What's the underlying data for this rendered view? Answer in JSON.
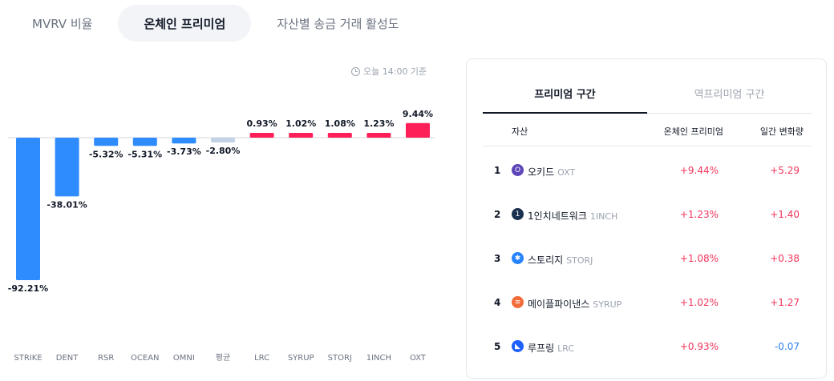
{
  "tabs": [
    {
      "label": "MVRV 비율",
      "active": false
    },
    {
      "label": "온체인 프리미엄",
      "active": true
    },
    {
      "label": "자산별 송금 거래 활성도",
      "active": false
    }
  ],
  "timestamp": "오늘 14:00 기준",
  "chart_data": {
    "type": "bar",
    "categories": [
      "STRIKE",
      "DENT",
      "RSR",
      "OCEAN",
      "OMNI",
      "평균",
      "LRC",
      "SYRUP",
      "STORJ",
      "1INCH",
      "OXT"
    ],
    "values": [
      -92.21,
      -38.01,
      -5.32,
      -5.31,
      -3.73,
      -2.8,
      0.93,
      1.02,
      1.08,
      1.23,
      9.44
    ],
    "data_labels": [
      "-92.21%",
      "-38.01%",
      "-5.32%",
      "-5.31%",
      "-3.73%",
      "-2.80%",
      "0.93%",
      "1.02%",
      "1.08%",
      "1.23%",
      "9.44%"
    ],
    "title": "",
    "xlabel": "",
    "ylabel": "",
    "colors": {
      "negative": "#2f8cff",
      "positive": "#ff1f58",
      "average": "#c3d3e5"
    }
  },
  "panel": {
    "tabs": [
      {
        "label": "프리미엄 구간",
        "active": true
      },
      {
        "label": "역프리미엄 구간",
        "active": false
      }
    ],
    "headers": {
      "asset": "자산",
      "premium": "온체인 프리미엄",
      "change": "일간 변화량"
    },
    "rows": [
      {
        "rank": "1",
        "name": "오키드",
        "symbol": "OXT",
        "premium": "+9.44%",
        "change": "+5.29",
        "icon": "orchid-icon",
        "icon_color": "#5f45ba",
        "icon_glyph": "O"
      },
      {
        "rank": "2",
        "name": "1인치네트워크",
        "symbol": "1INCH",
        "premium": "+1.23%",
        "change": "+1.40",
        "icon": "1inch-icon",
        "icon_color": "#1b314f",
        "icon_glyph": "1"
      },
      {
        "rank": "3",
        "name": "스토리지",
        "symbol": "STORJ",
        "premium": "+1.08%",
        "change": "+0.38",
        "icon": "storj-icon",
        "icon_color": "#2683ff",
        "icon_glyph": "✱"
      },
      {
        "rank": "4",
        "name": "메이플파이낸스",
        "symbol": "SYRUP",
        "premium": "+1.02%",
        "change": "+1.27",
        "icon": "syrup-icon",
        "icon_color": "#f26b38",
        "icon_glyph": "≡"
      },
      {
        "rank": "5",
        "name": "루프링",
        "symbol": "LRC",
        "premium": "+0.93%",
        "change": "-0.07",
        "icon": "loopring-icon",
        "icon_color": "#1c60ff",
        "icon_glyph": "◣"
      }
    ]
  }
}
